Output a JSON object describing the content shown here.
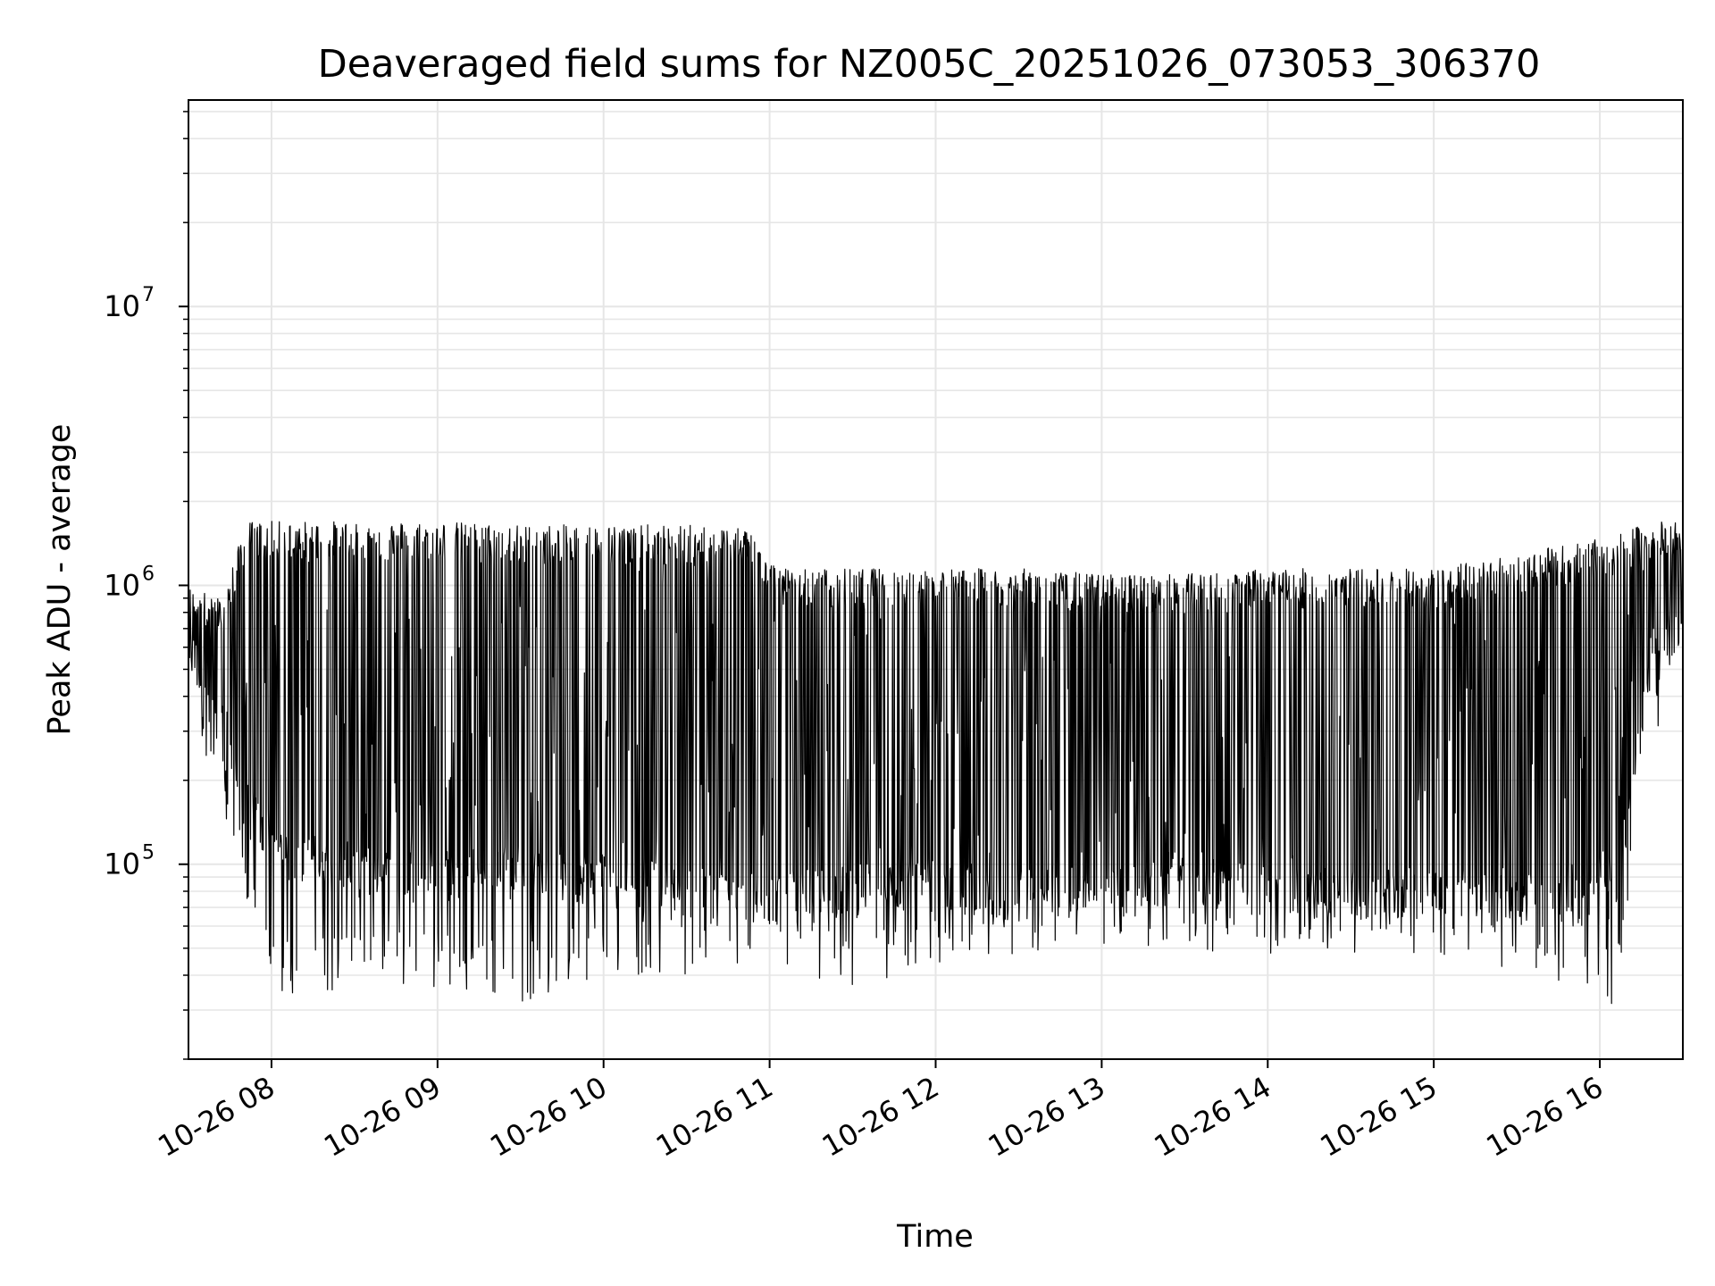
{
  "chart_data": {
    "type": "line",
    "title": "Deaveraged field sums for NZ005C_20251026_073053_306370",
    "xlabel": "Time",
    "ylabel": "Peak ADU - average",
    "yscale": "log",
    "ylim": [
      20000,
      55000000
    ],
    "xlim_hours": [
      7.5,
      16.5
    ],
    "grid": true,
    "line_color": "#000000",
    "grid_color": "#e6e6e6",
    "x_ticks": [
      {
        "hour": 8,
        "label": "10-26 08"
      },
      {
        "hour": 9,
        "label": "10-26 09"
      },
      {
        "hour": 10,
        "label": "10-26 10"
      },
      {
        "hour": 11,
        "label": "10-26 11"
      },
      {
        "hour": 12,
        "label": "10-26 12"
      },
      {
        "hour": 13,
        "label": "10-26 13"
      },
      {
        "hour": 14,
        "label": "10-26 14"
      },
      {
        "hour": 15,
        "label": "10-26 15"
      },
      {
        "hour": 16,
        "label": "10-26 16"
      }
    ],
    "y_ticks": [
      {
        "value": 100000,
        "base": "10",
        "exp": "5"
      },
      {
        "value": 1000000,
        "base": "10",
        "exp": "6"
      },
      {
        "value": 10000000,
        "base": "10",
        "exp": "7"
      }
    ],
    "envelope": {
      "hours": [
        7.5,
        7.7,
        7.85,
        8.0,
        8.5,
        9.0,
        9.5,
        10.0,
        10.5,
        10.9,
        11.05,
        11.5,
        12.0,
        12.5,
        13.0,
        13.5,
        14.0,
        14.5,
        15.0,
        15.5,
        15.8,
        16.1,
        16.3,
        16.5
      ],
      "peak": [
        1000000,
        900000,
        1700000,
        1700000,
        1700000,
        1700000,
        1650000,
        1650000,
        1650000,
        1600000,
        1150000,
        1150000,
        1150000,
        1150000,
        1100000,
        1100000,
        1150000,
        1150000,
        1150000,
        1300000,
        1400000,
        1500000,
        1700000,
        1700000
      ],
      "base": [
        600000,
        300000,
        160000,
        110000,
        95000,
        90000,
        90000,
        88000,
        80000,
        75000,
        75000,
        80000,
        85000,
        78000,
        78000,
        85000,
        80000,
        78000,
        78000,
        78000,
        70000,
        80000,
        500000,
        800000
      ],
      "trough": [
        500000,
        200000,
        80000,
        40000,
        45000,
        45000,
        40000,
        50000,
        50000,
        50000,
        50000,
        45000,
        55000,
        60000,
        65000,
        60000,
        60000,
        60000,
        60000,
        50000,
        35000,
        40000,
        300000,
        600000
      ]
    }
  }
}
